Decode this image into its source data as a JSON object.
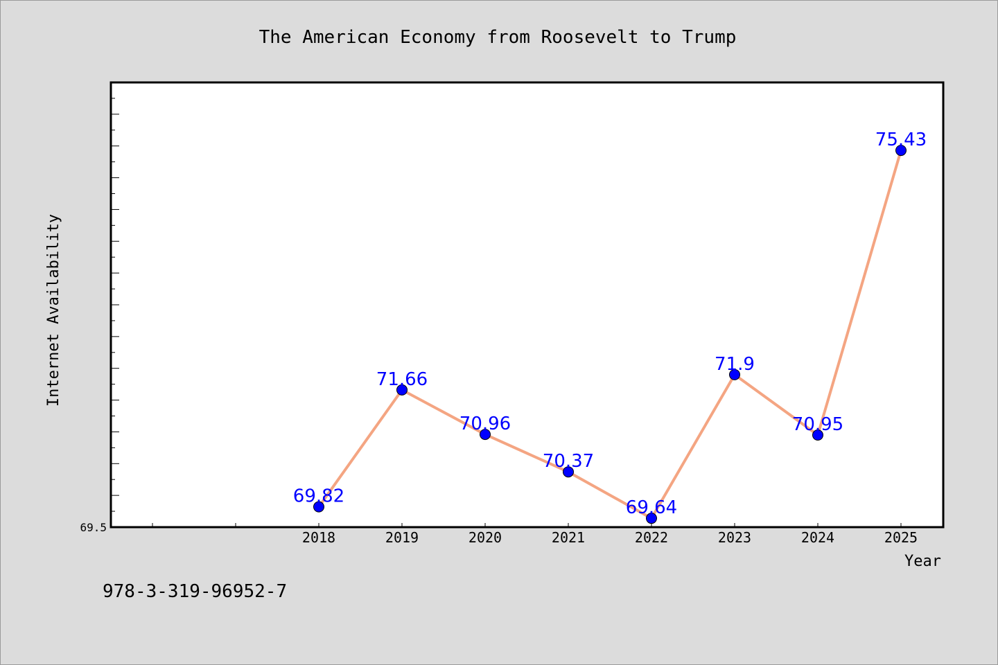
{
  "caption": "978-3-319-96952-7",
  "colors": {
    "background": "#dcdcdc",
    "plot_background": "#ffffff",
    "line": "#f4a582",
    "marker": "#0000ff",
    "label": "#0000ff"
  },
  "chart_data": {
    "type": "line",
    "title": "The American Economy from Roosevelt to Trump",
    "xlabel": "Year",
    "ylabel": "Internet Availability",
    "categories": [
      "2018",
      "2019",
      "2020",
      "2021",
      "2022",
      "2023",
      "2024",
      "2025"
    ],
    "series": [
      {
        "values": [
          69.82,
          71.66,
          70.96,
          70.37,
          69.64,
          71.9,
          70.95,
          75.43
        ],
        "labels": [
          "69.82",
          "71.66",
          "70.96",
          "70.37",
          "69.64",
          "71.9",
          "70.95",
          "75.43"
        ]
      }
    ],
    "ytick_labels": [
      "69.5"
    ],
    "ylim": [
      69.5,
      76.5
    ],
    "grid": false,
    "legend": "none"
  }
}
